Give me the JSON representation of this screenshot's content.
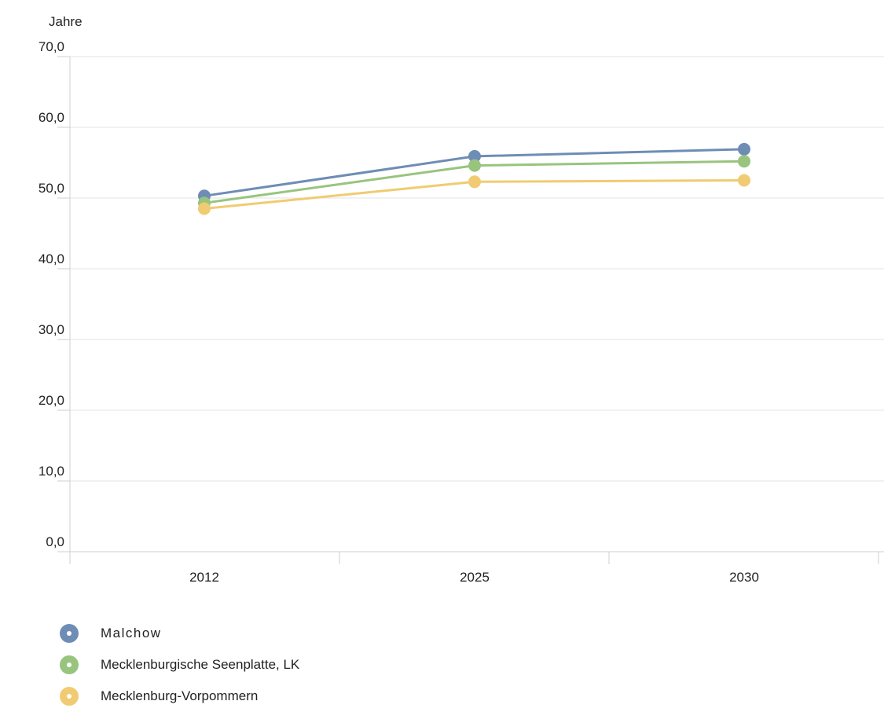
{
  "chart_data": {
    "type": "line",
    "title": "",
    "xlabel": "",
    "ylabel": "Jahre",
    "categories": [
      "2012",
      "2025",
      "2030"
    ],
    "ylim": [
      0,
      70
    ],
    "yticks": [
      "0,0",
      "10,0",
      "20,0",
      "30,0",
      "40,0",
      "50,0",
      "60,0",
      "70,0"
    ],
    "grid": true,
    "legend_position": "bottom-left",
    "series": [
      {
        "name": "Malchow",
        "color": "#6e8db5",
        "values": [
          50.3,
          55.9,
          56.9
        ]
      },
      {
        "name": "Mecklenburgische Seenplatte, LK",
        "color": "#98c47e",
        "values": [
          49.3,
          54.6,
          55.2
        ]
      },
      {
        "name": "Mecklenburg-Vorpommern",
        "color": "#f0cb72",
        "values": [
          48.5,
          52.3,
          52.5
        ]
      }
    ]
  }
}
